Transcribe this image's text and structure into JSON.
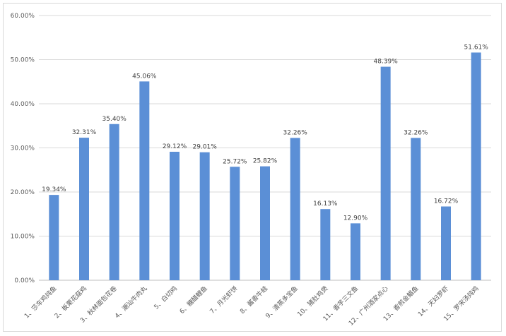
{
  "chart_data": {
    "type": "bar",
    "title": "",
    "xlabel": "",
    "ylabel": "",
    "ylim": [
      0,
      60
    ],
    "y_ticks": [
      "0.00%",
      "10.00%",
      "20.00%",
      "30.00%",
      "40.00%",
      "50.00%",
      "60.00%"
    ],
    "grid": true,
    "bar_color": "#5b8fd6",
    "categories": [
      "1、莎车鸡炖鱼",
      "2、板栗花菇鸡",
      "3、秋林面包花卷",
      "4、潮汕牛肉丸",
      "5、白切鸡",
      "6、糖醋鲤鱼",
      "7、月光虾饼",
      "8、酱香牛蛙",
      "9、清蒸多宝鱼",
      "10、猪肚鸡煲",
      "11、香芋三文鱼",
      "12、广州酒家点心",
      "13、香煎金鲳鱼",
      "14、天妇罗虾",
      "15、罗宋汤炖鸡"
    ],
    "values": [
      19.34,
      32.31,
      35.4,
      45.06,
      29.12,
      29.01,
      25.72,
      25.82,
      32.26,
      16.13,
      12.9,
      48.39,
      32.26,
      16.72,
      51.61
    ],
    "data_labels": [
      "19.34%",
      "32.31%",
      "35.40%",
      "45.06%",
      "29.12%",
      "29.01%",
      "25.72%",
      "25.82%",
      "32.26%",
      "16.13%",
      "12.90%",
      "48.39%",
      "32.26%",
      "16.72%",
      "51.61%"
    ]
  }
}
